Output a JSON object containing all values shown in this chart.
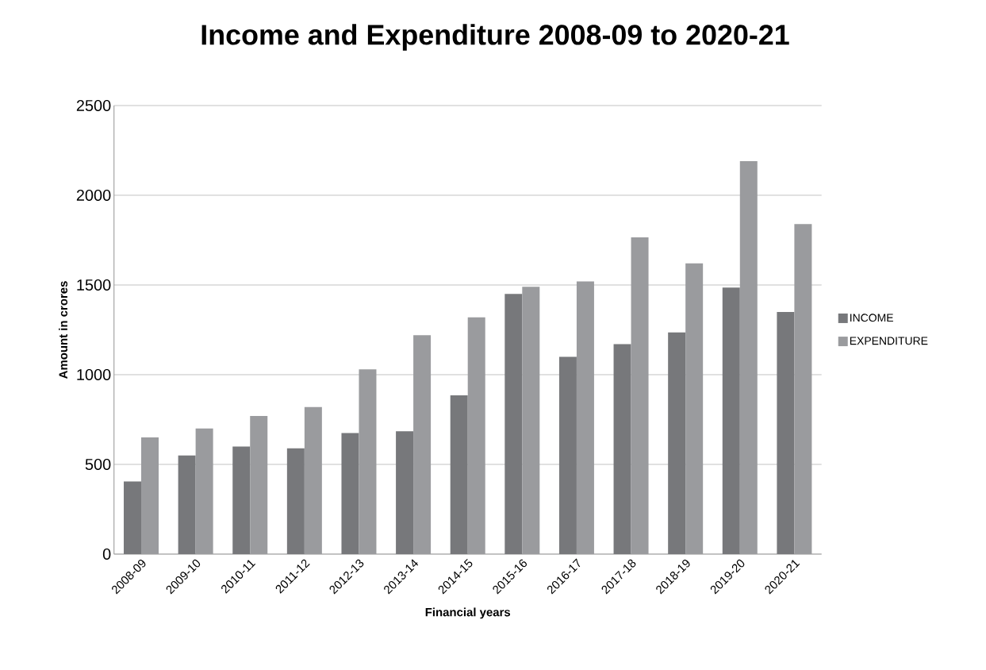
{
  "chart_data": {
    "type": "bar",
    "title": "Income and Expenditure 2008-09 to 2020-21",
    "xlabel": "Financial years",
    "ylabel": "Amount in crores",
    "categories": [
      "2008-09",
      "2009-10",
      "2010-11",
      "2011-12",
      "2012-13",
      "2013-14",
      "2014-15",
      "2015-16",
      "2016-17",
      "2017-18",
      "2018-19",
      "2019-20",
      "2020-21"
    ],
    "series": [
      {
        "name": "INCOME",
        "color": "#77787b",
        "values": [
          405,
          550,
          600,
          590,
          675,
          685,
          885,
          1450,
          1100,
          1170,
          1235,
          1485,
          1350
        ]
      },
      {
        "name": "EXPENDITURE",
        "color": "#9a9b9e",
        "values": [
          650,
          700,
          770,
          820,
          1030,
          1220,
          1320,
          1490,
          1520,
          1765,
          1620,
          2190,
          1840
        ]
      }
    ],
    "ylim": [
      0,
      2500
    ],
    "yticks": [
      0,
      500,
      1000,
      1500,
      2000,
      2500
    ],
    "grid": "y",
    "legend": "right"
  }
}
